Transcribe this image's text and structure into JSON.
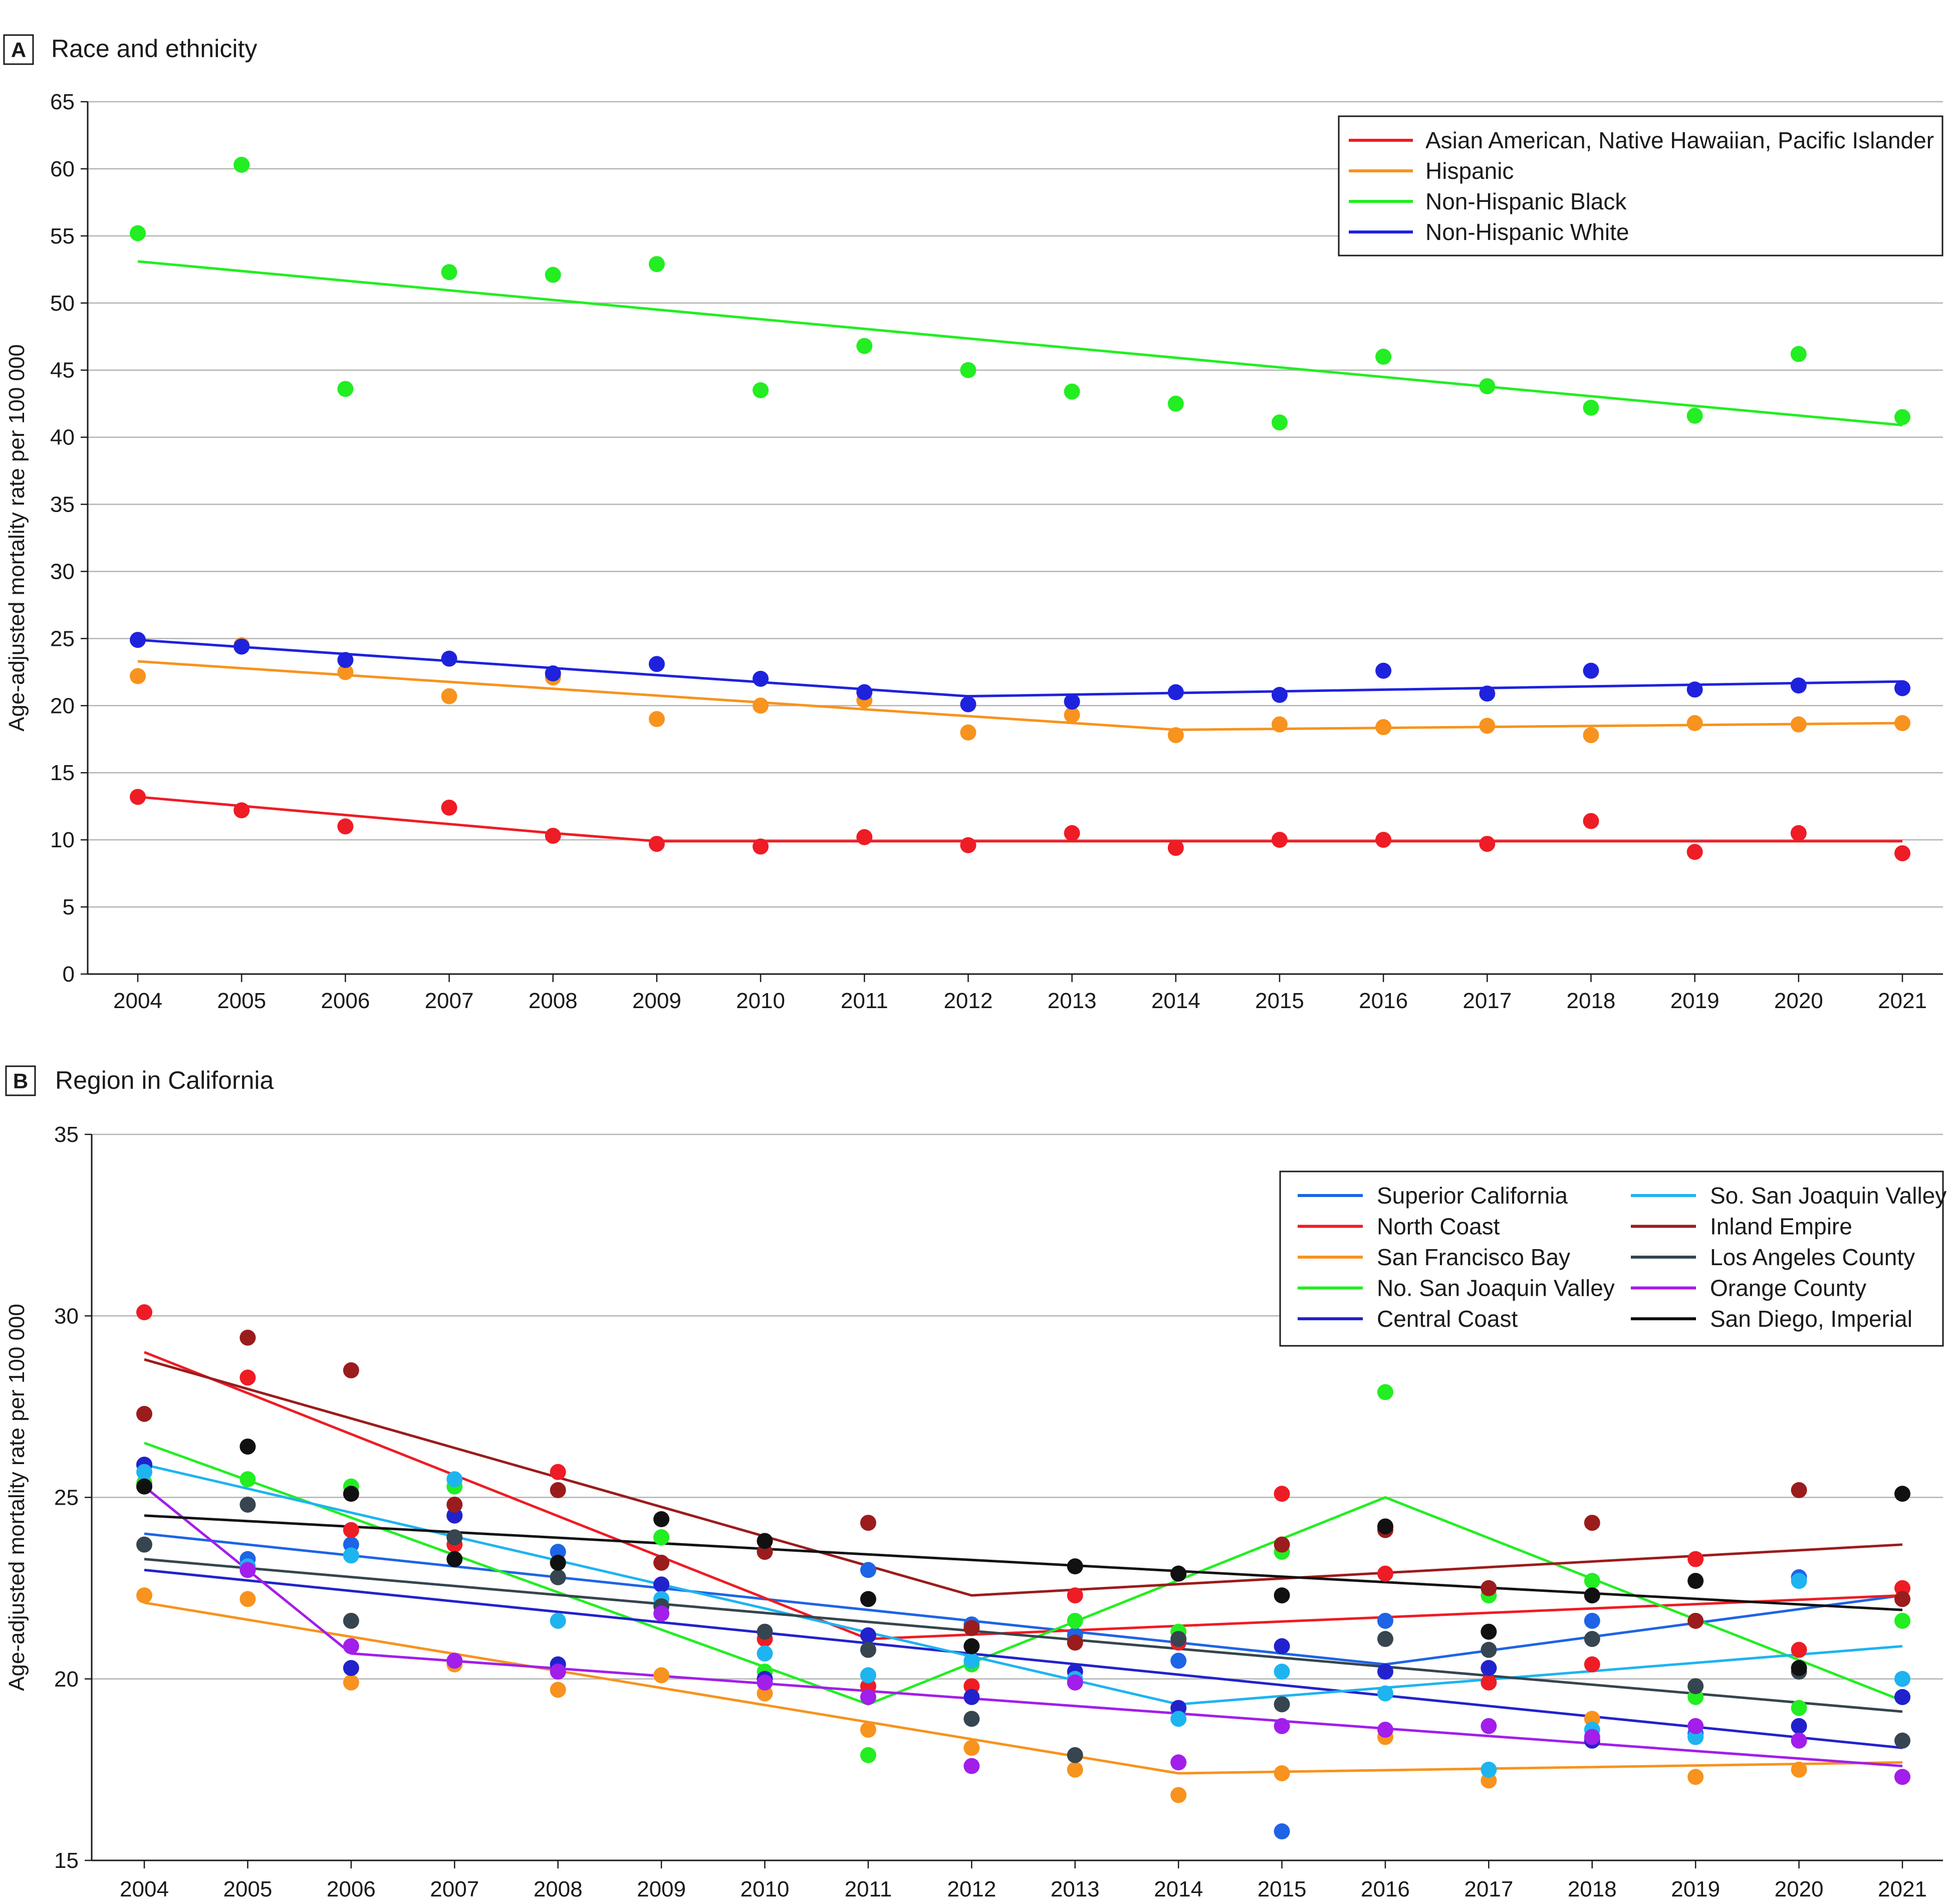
{
  "chart_data": [
    {
      "type": "scatter",
      "panel": "A",
      "title": "Race and ethnicity",
      "xlabel": "",
      "ylabel": "Age-adjusted mortality rate per 100 000",
      "ylim": [
        0,
        65
      ],
      "yticks": [
        0,
        5,
        10,
        15,
        20,
        25,
        30,
        35,
        40,
        45,
        50,
        55,
        60,
        65
      ],
      "grid": true,
      "legend_position": "top-right",
      "legend_columns": 1,
      "categories": [
        "2004",
        "2005",
        "2006",
        "2007",
        "2008",
        "2009",
        "2010",
        "2011",
        "2012",
        "2013",
        "2014",
        "2015",
        "2016",
        "2017",
        "2018",
        "2019",
        "2020",
        "2021"
      ],
      "series": [
        {
          "name": "Asian American, Native Hawaiian, Pacific Islander",
          "color": "#ee1c25",
          "values": [
            13.2,
            12.2,
            11.0,
            12.4,
            10.3,
            9.7,
            9.5,
            10.2,
            9.6,
            10.5,
            9.4,
            10.0,
            10.0,
            9.7,
            11.4,
            9.1,
            10.5,
            9.0
          ],
          "trend": [
            [
              2004,
              13.2
            ],
            [
              2008,
              10.5
            ],
            [
              2009,
              9.9
            ],
            [
              2021,
              9.9
            ]
          ]
        },
        {
          "name": "Hispanic",
          "color": "#f7931e",
          "values": [
            22.2,
            24.5,
            22.5,
            20.7,
            22.1,
            19.0,
            20.0,
            20.4,
            18.0,
            19.3,
            17.8,
            18.6,
            18.4,
            18.5,
            17.8,
            18.7,
            18.6,
            18.7
          ],
          "trend": [
            [
              2004,
              23.3
            ],
            [
              2014,
              18.2
            ],
            [
              2021,
              18.7
            ]
          ]
        },
        {
          "name": "Non-Hispanic Black",
          "color": "#22ee22",
          "values": [
            55.2,
            60.3,
            43.6,
            52.3,
            52.1,
            52.9,
            43.5,
            46.8,
            45.0,
            43.4,
            42.5,
            41.1,
            46.0,
            43.8,
            42.2,
            41.6,
            46.2,
            41.5
          ],
          "trend": [
            [
              2004,
              53.1
            ],
            [
              2021,
              40.9
            ]
          ]
        },
        {
          "name": "Non-Hispanic White",
          "color": "#1e22dd",
          "values": [
            24.9,
            24.4,
            23.4,
            23.5,
            22.4,
            23.1,
            22.0,
            21.0,
            20.1,
            20.3,
            21.0,
            20.8,
            22.6,
            20.9,
            22.6,
            21.2,
            21.5,
            21.3
          ],
          "trend": [
            [
              2004,
              24.9
            ],
            [
              2012,
              20.7
            ],
            [
              2021,
              21.8
            ]
          ]
        }
      ]
    },
    {
      "type": "scatter",
      "panel": "B",
      "title": "Region in California",
      "xlabel": "",
      "ylabel": "Age-adjusted mortality rate per 100 000",
      "ylim": [
        15,
        35
      ],
      "yticks": [
        15,
        20,
        25,
        30,
        35
      ],
      "grid": true,
      "legend_position": "top-right",
      "legend_columns": 2,
      "categories": [
        "2004",
        "2005",
        "2006",
        "2007",
        "2008",
        "2009",
        "2010",
        "2011",
        "2012",
        "2013",
        "2014",
        "2015",
        "2016",
        "2017",
        "2018",
        "2019",
        "2020",
        "2021"
      ],
      "series": [
        {
          "name": "Superior California",
          "color": "#1e64e6",
          "values": [
            25.9,
            23.3,
            23.7,
            24.5,
            23.5,
            22.6,
            20.0,
            23.0,
            21.5,
            21.2,
            20.5,
            15.8,
            21.6,
            20.3,
            21.6,
            18.5,
            22.8,
            19.5
          ],
          "trend": [
            [
              2004,
              24.0
            ],
            [
              2016,
              20.4
            ],
            [
              2021,
              22.3
            ]
          ]
        },
        {
          "name": "North Coast",
          "color": "#ee1c25",
          "values": [
            30.1,
            28.3,
            24.1,
            23.7,
            25.7,
            23.9,
            21.1,
            19.8,
            19.8,
            22.3,
            21.0,
            25.1,
            22.9,
            19.9,
            20.4,
            23.3,
            20.8,
            22.5
          ],
          "trend": [
            [
              2004,
              29.0
            ],
            [
              2011,
              21.1
            ],
            [
              2021,
              22.3
            ]
          ]
        },
        {
          "name": "San Francisco Bay",
          "color": "#f7931e",
          "values": [
            22.3,
            22.2,
            19.9,
            20.4,
            19.7,
            20.1,
            19.6,
            18.6,
            18.1,
            17.5,
            16.8,
            17.4,
            18.4,
            17.2,
            18.9,
            17.3,
            17.5,
            17.3
          ],
          "trend": [
            [
              2004,
              22.1
            ],
            [
              2014,
              17.4
            ],
            [
              2021,
              17.7
            ]
          ]
        },
        {
          "name": "No. San Joaquin Valley",
          "color": "#22ee22",
          "values": [
            25.4,
            25.5,
            25.3,
            25.3,
            23.2,
            23.9,
            20.2,
            17.9,
            20.4,
            21.6,
            21.3,
            23.5,
            27.9,
            22.3,
            22.7,
            19.5,
            19.2,
            21.6
          ],
          "trend": [
            [
              2004,
              26.5
            ],
            [
              2011,
              19.3
            ],
            [
              2016,
              25.0
            ],
            [
              2021,
              19.4
            ]
          ]
        },
        {
          "name": "Central Coast",
          "color": "#2222cc",
          "values": [
            25.9,
            23.0,
            20.3,
            24.5,
            20.4,
            22.6,
            20.0,
            21.2,
            19.5,
            20.2,
            19.2,
            20.9,
            20.2,
            20.3,
            18.3,
            18.4,
            18.7,
            19.5
          ],
          "trend": [
            [
              2004,
              23.0
            ],
            [
              2021,
              18.1
            ]
          ]
        },
        {
          "name": "So. San Joaquin Valley",
          "color": "#1eb4f0",
          "values": [
            25.7,
            23.1,
            23.4,
            25.5,
            21.6,
            22.2,
            20.7,
            20.1,
            20.5,
            20.0,
            18.9,
            20.2,
            19.6,
            17.5,
            18.6,
            18.4,
            22.7,
            20.0
          ],
          "trend": [
            [
              2004,
              25.9
            ],
            [
              2014,
              19.3
            ],
            [
              2021,
              20.9
            ]
          ]
        },
        {
          "name": "Inland Empire",
          "color": "#9b1c1c",
          "values": [
            27.3,
            29.4,
            28.5,
            24.8,
            25.2,
            23.2,
            23.5,
            24.3,
            21.4,
            21.0,
            22.9,
            23.7,
            24.1,
            22.5,
            24.3,
            21.6,
            25.2,
            22.2
          ],
          "trend": [
            [
              2004,
              28.8
            ],
            [
              2012,
              22.3
            ],
            [
              2021,
              23.7
            ]
          ]
        },
        {
          "name": "Los Angeles County",
          "color": "#36454f",
          "values": [
            23.7,
            24.8,
            21.6,
            23.9,
            22.8,
            22.0,
            21.3,
            20.8,
            18.9,
            17.9,
            21.1,
            19.3,
            21.1,
            20.8,
            21.1,
            19.8,
            20.2,
            18.3
          ],
          "trend": [
            [
              2004,
              23.3
            ],
            [
              2021,
              19.1
            ]
          ]
        },
        {
          "name": "Orange County",
          "color": "#a21eea",
          "values": [
            25.3,
            23.0,
            20.9,
            20.5,
            20.2,
            21.8,
            19.9,
            19.5,
            17.6,
            19.9,
            17.7,
            18.7,
            18.6,
            18.7,
            18.4,
            18.7,
            18.3,
            17.3
          ],
          "trend": [
            [
              2004,
              25.3
            ],
            [
              2006,
              20.7
            ],
            [
              2021,
              17.6
            ]
          ]
        },
        {
          "name": "San Diego, Imperial",
          "color": "#111111",
          "values": [
            25.3,
            26.4,
            25.1,
            23.3,
            23.2,
            24.4,
            23.8,
            22.2,
            20.9,
            23.1,
            22.9,
            22.3,
            24.2,
            21.3,
            22.3,
            22.7,
            20.3,
            25.1
          ],
          "trend": [
            [
              2004,
              24.5
            ],
            [
              2021,
              21.9
            ]
          ]
        }
      ]
    }
  ]
}
